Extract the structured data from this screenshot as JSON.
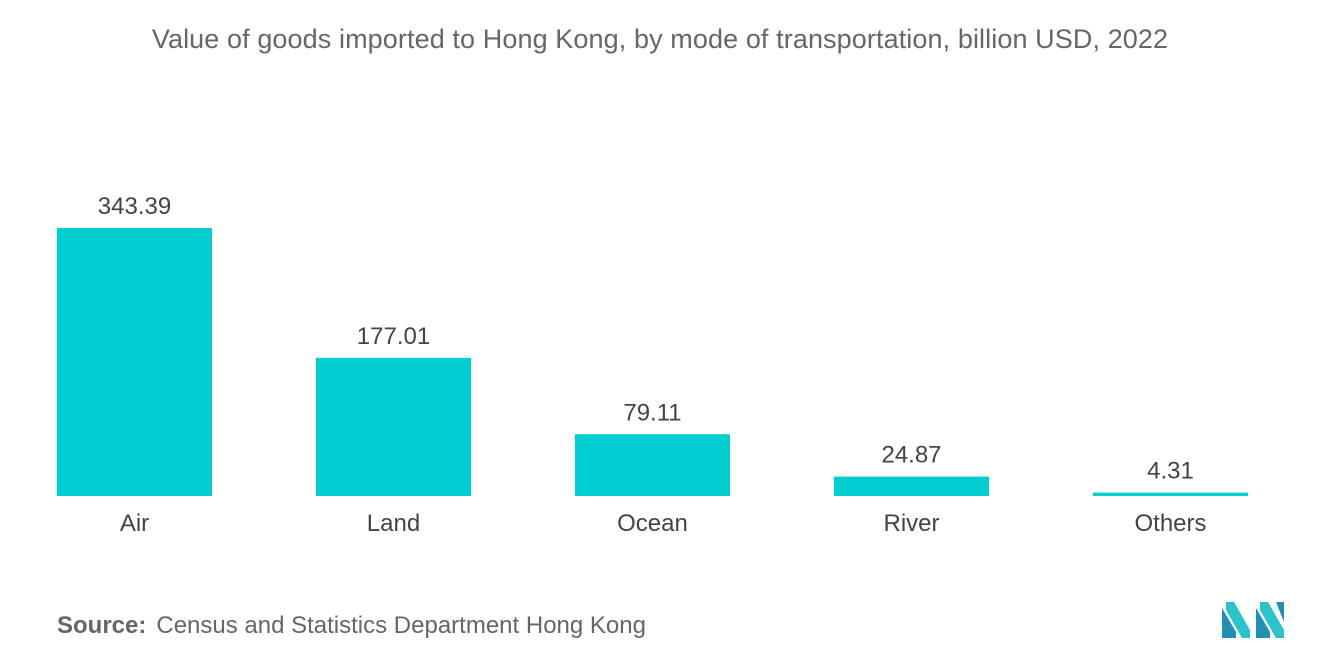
{
  "chart_data": {
    "type": "bar",
    "title": "Value of goods imported to Hong Kong, by mode of transportation, billion USD, 2022",
    "categories": [
      "Air",
      "Land",
      "Ocean",
      "River",
      "Others"
    ],
    "values": [
      343.39,
      177.01,
      79.11,
      24.87,
      4.31
    ],
    "value_labels": [
      "343.39",
      "177.01",
      "79.11",
      "24.87",
      "4.31"
    ],
    "xlabel": "",
    "ylabel": "",
    "grid": false,
    "legend": "none",
    "bar_color": "#00CED1"
  },
  "source": {
    "label": "Source:",
    "text": "Census and Statistics Department Hong Kong"
  },
  "logo": {
    "icon": "mordor-intelligence-logo-icon",
    "colors": [
      "#1f8fb6",
      "#27c4c9"
    ]
  }
}
